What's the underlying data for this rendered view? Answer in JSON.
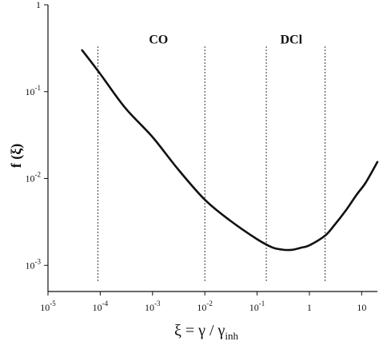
{
  "chart_data": {
    "type": "line",
    "xscale": "log",
    "yscale": "log",
    "xlim": [
      1e-05,
      20
    ],
    "ylim": [
      0.0005,
      1
    ],
    "xlabel": "ξ = γ / γinh",
    "xlabel_parts": {
      "main": "ξ = γ / γ",
      "sub": "inh"
    },
    "ylabel": "f (ξ)",
    "x_ticks": [
      {
        "value": 1e-05,
        "base": "10",
        "exp": "-5"
      },
      {
        "value": 0.0001,
        "base": "10",
        "exp": "-4"
      },
      {
        "value": 0.001,
        "base": "10",
        "exp": "-3"
      },
      {
        "value": 0.01,
        "base": "10",
        "exp": "-2"
      },
      {
        "value": 0.1,
        "base": "10",
        "exp": "-1"
      },
      {
        "value": 1,
        "base": "1",
        "exp": ""
      },
      {
        "value": 10,
        "base": "10",
        "exp": ""
      }
    ],
    "y_ticks": [
      {
        "value": 0.001,
        "base": "10",
        "exp": "-3"
      },
      {
        "value": 0.01,
        "base": "10",
        "exp": "-2"
      },
      {
        "value": 0.1,
        "base": "10",
        "exp": "-1"
      },
      {
        "value": 1,
        "base": "1",
        "exp": ""
      }
    ],
    "series": [
      {
        "x": [
          4.5e-05,
          0.0001,
          0.0003,
          0.001,
          0.003,
          0.01,
          0.03,
          0.1,
          0.2,
          0.3,
          0.4,
          0.5,
          0.7,
          1,
          2,
          3,
          5,
          8,
          12,
          20
        ],
        "y": [
          0.3,
          0.16,
          0.065,
          0.03,
          0.013,
          0.0057,
          0.0033,
          0.002,
          0.0016,
          0.00152,
          0.0015,
          0.00152,
          0.0016,
          0.0017,
          0.0022,
          0.0029,
          0.0043,
          0.0065,
          0.009,
          0.0155
        ]
      }
    ],
    "vlines": [
      9e-05,
      0.01,
      0.15,
      2
    ],
    "annotations": [
      {
        "text": "CO",
        "x": 0.0013,
        "y": 0.4
      },
      {
        "text": "DCl",
        "x": 0.45,
        "y": 0.4
      }
    ],
    "grid": false
  }
}
